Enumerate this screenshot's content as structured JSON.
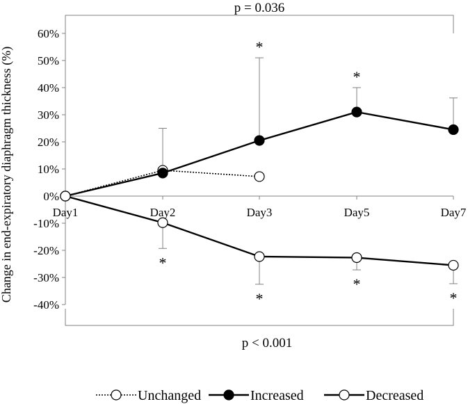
{
  "chart_data": {
    "type": "line",
    "title": "",
    "xlabel": "",
    "ylabel": "Change in end-expiratory diaphragm thickness (%)",
    "categories": [
      "Day1",
      "Day2",
      "Day3",
      "Day5",
      "Day7"
    ],
    "ylim": [
      -40,
      60
    ],
    "yticks": [
      -40,
      -30,
      -20,
      -10,
      0,
      10,
      20,
      30,
      40,
      50,
      60
    ],
    "ytick_labels": [
      "-40%",
      "-30%",
      "-20%",
      "-10%",
      "0%",
      "10%",
      "20%",
      "30%",
      "40%",
      "50%",
      "60%"
    ],
    "series": [
      {
        "name": "Unchanged",
        "style": "dotted",
        "marker": "open",
        "values": [
          0,
          9.5,
          7.2,
          null,
          null
        ],
        "error_up": [
          null,
          25,
          null,
          null,
          null
        ],
        "error_down": [
          null,
          null,
          null,
          null,
          null
        ],
        "asterisks": [
          false,
          false,
          false,
          false,
          false
        ]
      },
      {
        "name": "Increased",
        "style": "solid",
        "marker": "filled",
        "values": [
          0,
          8.5,
          20.5,
          31,
          24.5
        ],
        "error_up": [
          null,
          null,
          51,
          40,
          36.2
        ],
        "error_down": [
          null,
          null,
          null,
          null,
          null
        ],
        "asterisks": [
          false,
          false,
          true,
          true,
          false
        ]
      },
      {
        "name": "Decreased",
        "style": "solid",
        "marker": "open",
        "values": [
          0,
          -9.8,
          -22.3,
          -22.7,
          -25.5
        ],
        "error_up": [
          null,
          null,
          null,
          null,
          null
        ],
        "error_down": [
          null,
          -19.3,
          -32.5,
          -27.2,
          -32.3
        ],
        "asterisks": [
          false,
          true,
          true,
          true,
          true
        ]
      }
    ],
    "annotations": {
      "top_bracket": "p = 0.036",
      "bottom_bracket": "p < 0.001",
      "asterisk": "*"
    },
    "legend": {
      "position": "bottom",
      "entries": [
        "Unchanged",
        "Increased",
        "Decreased"
      ]
    },
    "colors": {
      "line": "#000000",
      "errorbar": "#808080",
      "axis": "#808080",
      "marker_open_fill": "#ffffff",
      "marker_filled": "#000000"
    }
  }
}
